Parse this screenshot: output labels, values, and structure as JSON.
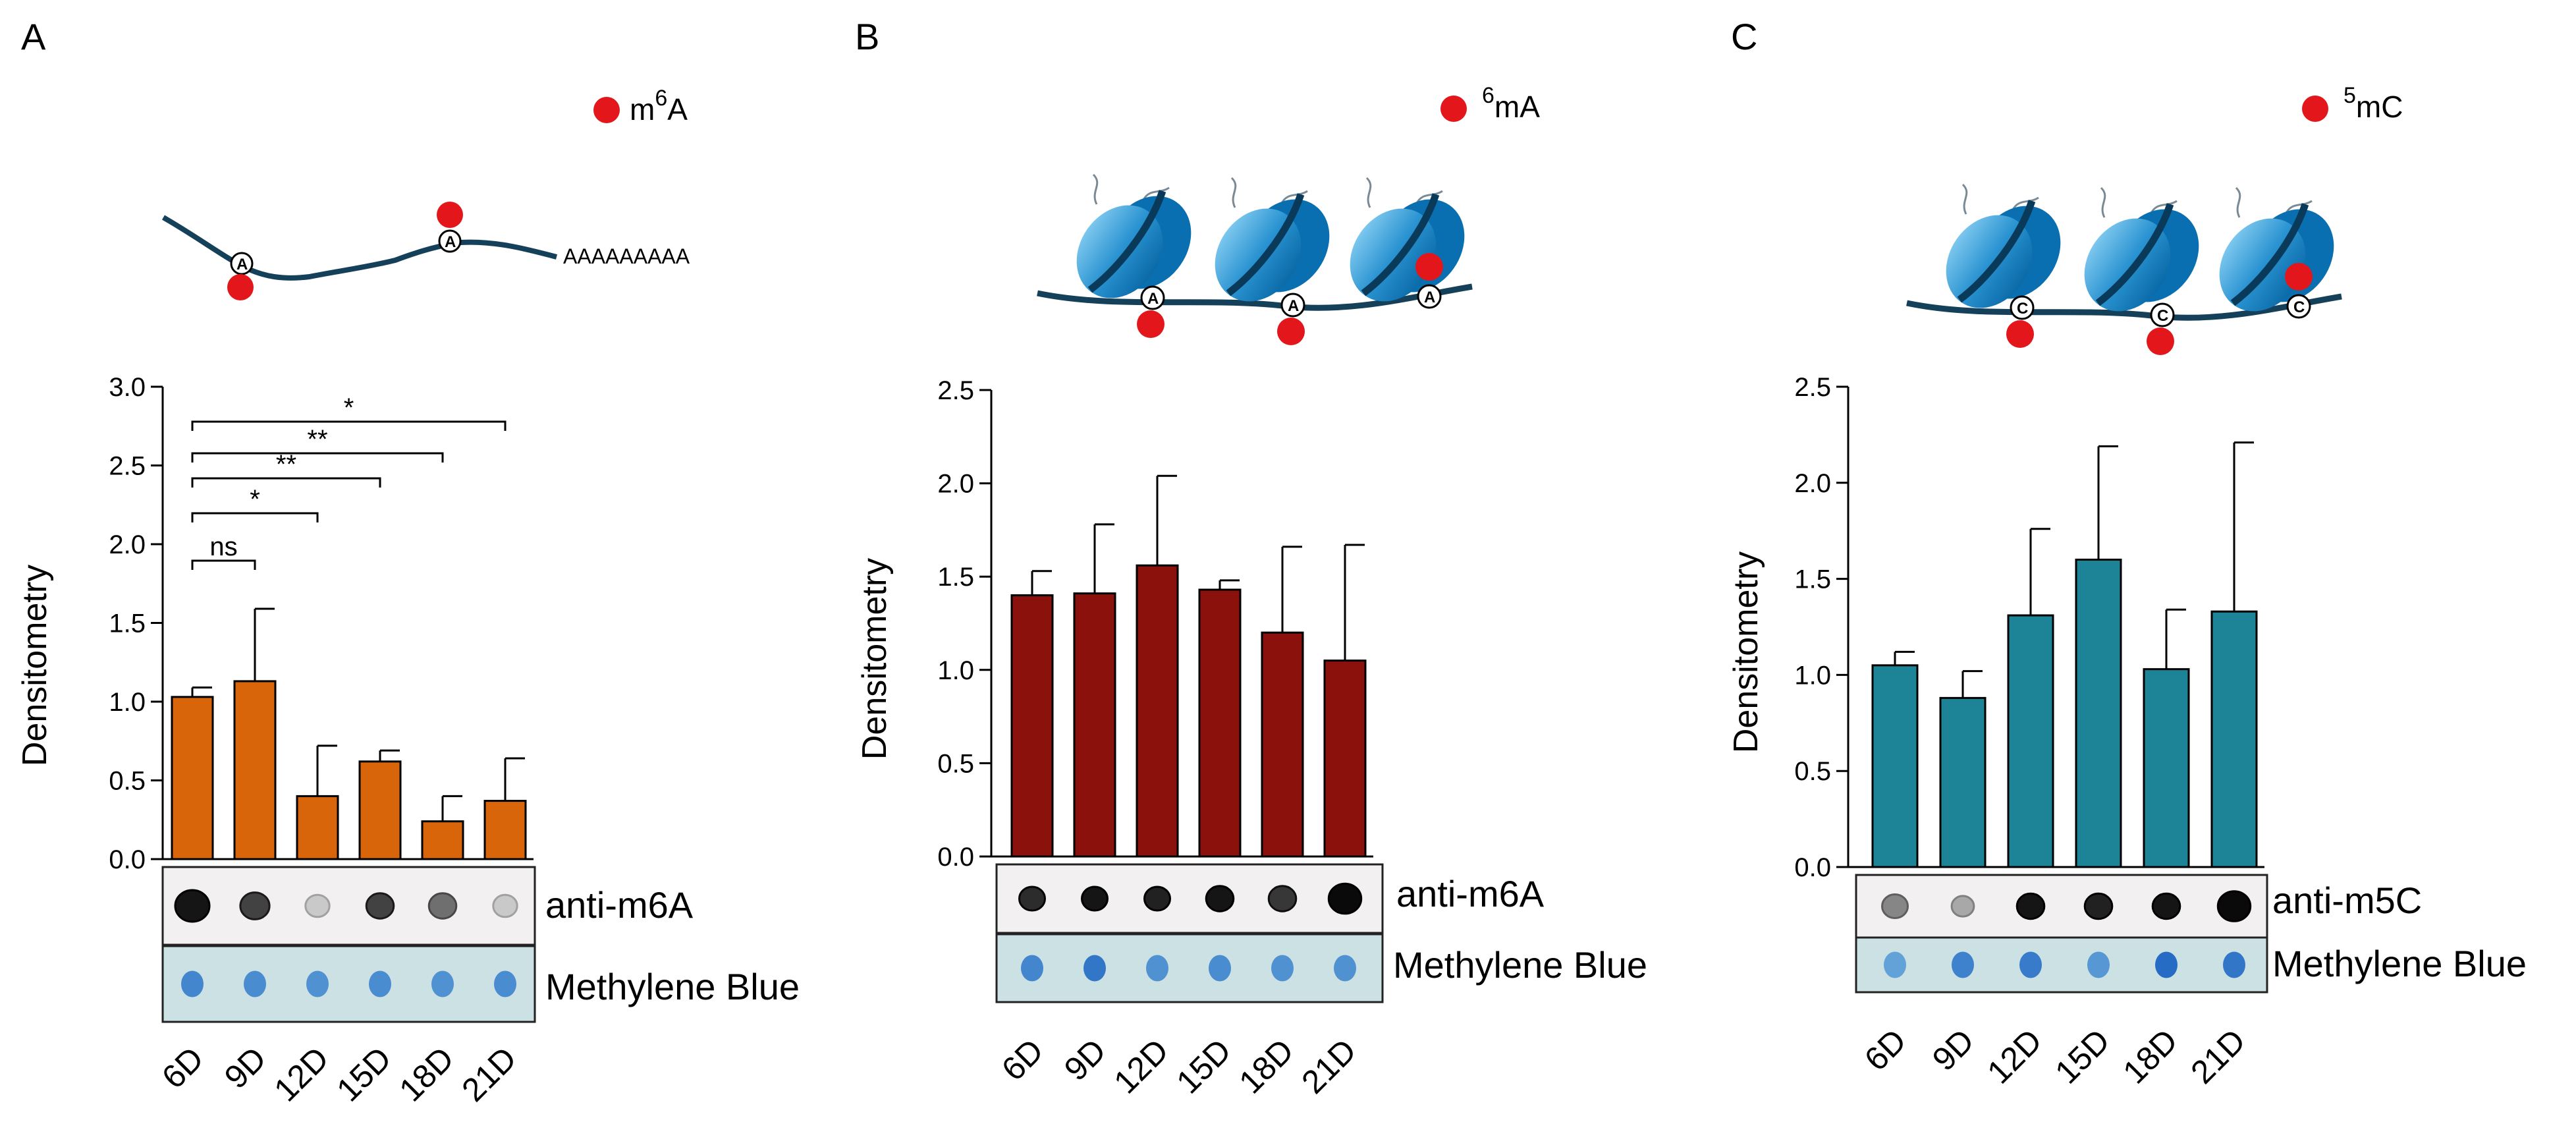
{
  "panels": [
    {
      "letter": "A",
      "legend": {
        "sup": "6",
        "pre": "m",
        "post": "A"
      },
      "polyA": "AAAAAAAAA",
      "mark_letter": "A",
      "color": "#d9650b",
      "ylabel": "Densitometry",
      "blot_top": "anti-m6A",
      "blot_bottom": "Methylene Blue"
    },
    {
      "letter": "B",
      "legend": {
        "sup": "6",
        "pre": "",
        "post": "mA"
      },
      "mark_letter": "A",
      "color": "#8b110c",
      "ylabel": "Densitometry",
      "blot_top": "anti-m6A",
      "blot_bottom": "Methylene Blue"
    },
    {
      "letter": "C",
      "legend": {
        "sup": "5",
        "pre": "",
        "post": "mC"
      },
      "mark_letter": "C",
      "color": "#1d8396",
      "ylabel": "Densitometry",
      "blot_top": "anti-m5C",
      "blot_bottom": "Methylene Blue"
    }
  ],
  "chart_data": [
    {
      "type": "bar",
      "title": "",
      "xlabel": "",
      "ylabel": "Densitometry",
      "categories": [
        "6D",
        "9D",
        "12D",
        "15D",
        "18D",
        "21D"
      ],
      "values": [
        1.03,
        1.13,
        0.4,
        0.62,
        0.24,
        0.37
      ],
      "error_upper": [
        1.09,
        1.59,
        0.72,
        0.69,
        0.4,
        0.64
      ],
      "ylim": [
        0,
        3.0
      ],
      "yticks": [
        "0.0",
        "0.5",
        "1.0",
        "1.5",
        "2.0",
        "2.5",
        "3.0"
      ],
      "significance": [
        {
          "pair": [
            "6D",
            "9D"
          ],
          "label": "ns"
        },
        {
          "pair": [
            "6D",
            "12D"
          ],
          "label": "*"
        },
        {
          "pair": [
            "6D",
            "15D"
          ],
          "label": "**"
        },
        {
          "pair": [
            "6D",
            "18D"
          ],
          "label": "**"
        },
        {
          "pair": [
            "6D",
            "21D"
          ],
          "label": "*"
        }
      ]
    },
    {
      "type": "bar",
      "title": "",
      "xlabel": "",
      "ylabel": "Densitometry",
      "categories": [
        "6D",
        "9D",
        "12D",
        "15D",
        "18D",
        "21D"
      ],
      "values": [
        1.4,
        1.41,
        1.56,
        1.43,
        1.2,
        1.05
      ],
      "error_upper": [
        1.53,
        1.78,
        2.04,
        1.48,
        1.66,
        1.67
      ],
      "ylim": [
        0,
        2.5
      ],
      "yticks": [
        "0.0",
        "0.5",
        "1.0",
        "1.5",
        "2.0",
        "2.5"
      ]
    },
    {
      "type": "bar",
      "title": "",
      "xlabel": "",
      "ylabel": "Densitometry",
      "categories": [
        "6D",
        "9D",
        "12D",
        "15D",
        "18D",
        "21D"
      ],
      "values": [
        1.05,
        0.88,
        1.31,
        1.6,
        1.03,
        1.33
      ],
      "error_upper": [
        1.12,
        1.02,
        1.76,
        2.19,
        1.34,
        2.21
      ],
      "ylim": [
        0,
        2.5
      ],
      "yticks": [
        "0.0",
        "0.5",
        "1.0",
        "1.5",
        "2.0",
        "2.5"
      ]
    }
  ],
  "dot_blots": [
    {
      "top": [
        {
          "darkness": 0.95,
          "size": 1.0
        },
        {
          "darkness": 0.75,
          "size": 0.85
        },
        {
          "darkness": 0.15,
          "size": 0.7
        },
        {
          "darkness": 0.75,
          "size": 0.8
        },
        {
          "darkness": 0.55,
          "size": 0.8
        },
        {
          "darkness": 0.15,
          "size": 0.7
        }
      ],
      "bottom": [
        {
          "shade": 0.6
        },
        {
          "shade": 0.55
        },
        {
          "shade": 0.5
        },
        {
          "shade": 0.55
        },
        {
          "shade": 0.5
        },
        {
          "shade": 0.55
        }
      ]
    },
    {
      "top": [
        {
          "darkness": 0.85,
          "size": 0.75
        },
        {
          "darkness": 0.95,
          "size": 0.75
        },
        {
          "darkness": 0.9,
          "size": 0.75
        },
        {
          "darkness": 0.95,
          "size": 0.8
        },
        {
          "darkness": 0.8,
          "size": 0.8
        },
        {
          "darkness": 1.0,
          "size": 0.95
        }
      ],
      "bottom": [
        {
          "shade": 0.6
        },
        {
          "shade": 0.75
        },
        {
          "shade": 0.5
        },
        {
          "shade": 0.55
        },
        {
          "shade": 0.5
        },
        {
          "shade": 0.5
        }
      ]
    },
    {
      "top": [
        {
          "darkness": 0.45,
          "size": 0.75
        },
        {
          "darkness": 0.3,
          "size": 0.65
        },
        {
          "darkness": 0.95,
          "size": 0.8
        },
        {
          "darkness": 0.9,
          "size": 0.8
        },
        {
          "darkness": 0.95,
          "size": 0.8
        },
        {
          "darkness": 1.0,
          "size": 0.95
        }
      ],
      "bottom": [
        {
          "shade": 0.35
        },
        {
          "shade": 0.65
        },
        {
          "shade": 0.7
        },
        {
          "shade": 0.45
        },
        {
          "shade": 0.85
        },
        {
          "shade": 0.75
        }
      ]
    }
  ],
  "colors": {
    "mark": "#e3171b",
    "strand": "#15405a",
    "nucleosome_light": "#58b6e6",
    "nucleosome_dark": "#0a6fb0",
    "blot_bg": "#f3f0f1",
    "mb_bg": "#cbe1e3"
  }
}
